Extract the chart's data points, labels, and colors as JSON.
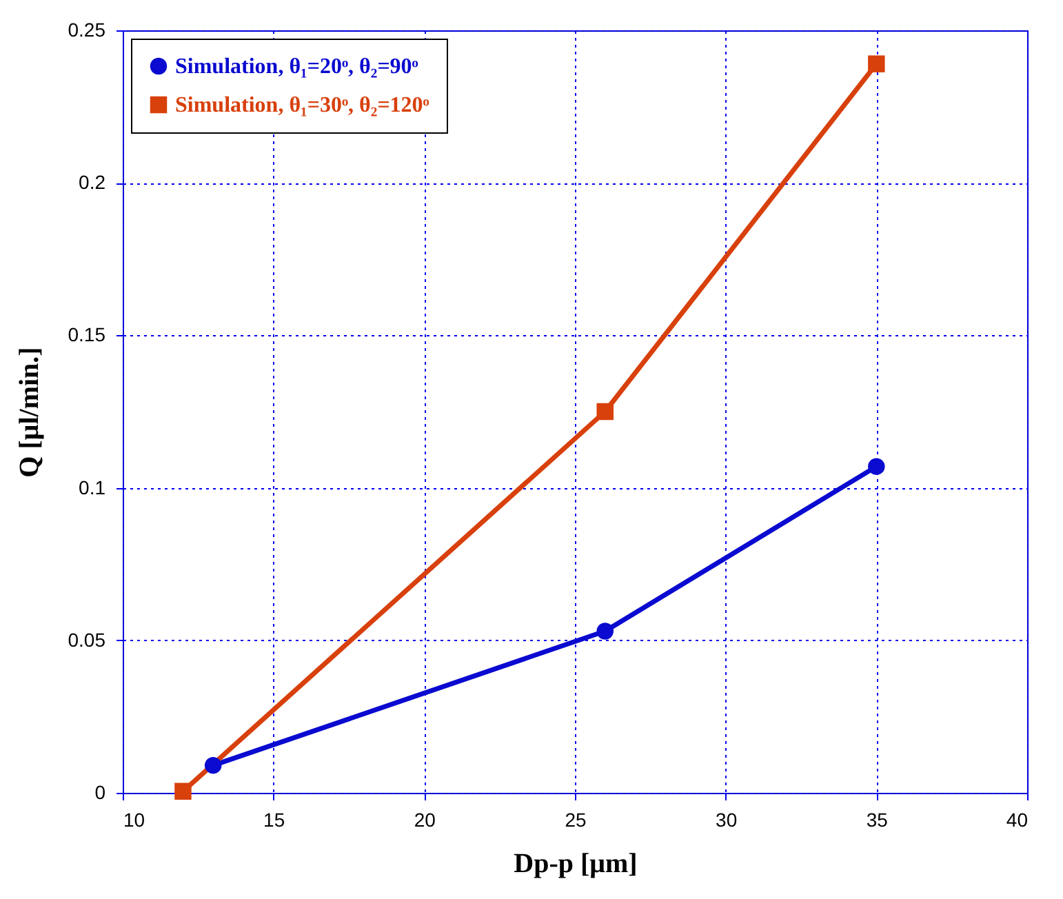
{
  "chart_data": {
    "type": "line",
    "xlabel": "Dp-p [μm]",
    "ylabel": "Q [μl/min.]",
    "xlim": [
      10,
      40
    ],
    "xticks": [
      10,
      15,
      20,
      25,
      30,
      35,
      40
    ],
    "ylim": [
      0,
      0.25
    ],
    "yticks": [
      0,
      0.05,
      0.1,
      0.15,
      0.2,
      0.25
    ],
    "grid": true,
    "legend": "top left",
    "series": [
      {
        "name": "Simulation, θ₁=20ᵒ, θ₂=90ᵒ",
        "color": "#0a0ad0",
        "marker": "circle",
        "x": [
          13,
          26,
          35
        ],
        "values": [
          0.009,
          0.053,
          0.107
        ]
      },
      {
        "name": "Simulation, θ₁=30ᵒ, θ₂=120ᵒ",
        "color": "#d8400c",
        "marker": "square",
        "x": [
          12,
          26,
          35
        ],
        "values": [
          0.0005,
          0.125,
          0.239
        ]
      }
    ]
  }
}
